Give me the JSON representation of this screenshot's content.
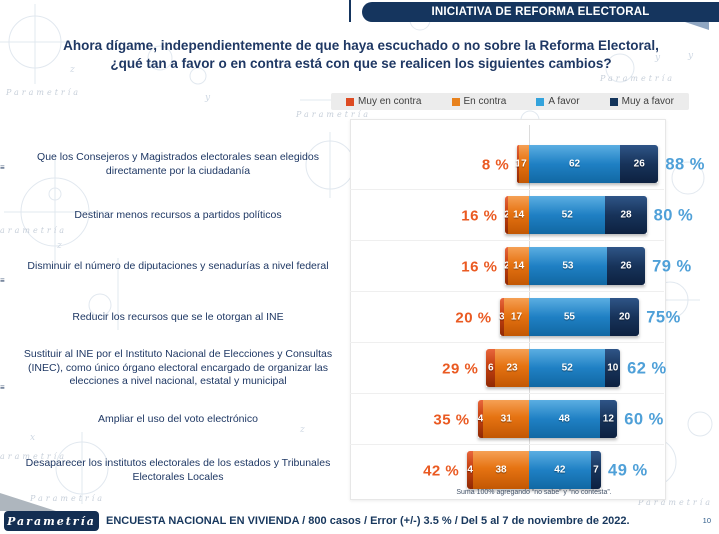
{
  "banner": {
    "title": "INICIATIVA DE REFORMA ELECTORAL"
  },
  "title": {
    "lines": [
      "Ahora dígame, independientemente de que haya escuchado o no sobre la Reforma Electoral,",
      "¿qué tan a favor o en contra está con que se realicen los siguientes cambios?"
    ]
  },
  "legend": {
    "items": [
      {
        "label": "Muy en contra",
        "color": "#dd4b23"
      },
      {
        "label": "En contra",
        "color": "#e8821e"
      },
      {
        "label": "A favor",
        "color": "#33a3dc"
      },
      {
        "label": "Muy a favor",
        "color": "#14355c"
      }
    ]
  },
  "chart_data": {
    "type": "bar",
    "orientation": "horizontal-diverging-stacked",
    "unit": "%",
    "categories": [
      "Que los Consejeros y Magistrados electorales sean elegidos directamente por la ciudadanía",
      "Destinar menos recursos a partidos políticos",
      "Disminuir el número de diputaciones y senadurías a nivel federal",
      "Reducir los recursos que se le otorgan al INE",
      "Sustituir al INE por el Instituto Nacional de Elecciones y Consultas (INEC), como único órgano electoral encargado de organizar las elecciones a nivel nacional, estatal y municipal",
      "Ampliar el uso del voto electrónico",
      "Desaparecer los institutos electorales de los estados y Tribunales Electorales Locales"
    ],
    "series": [
      {
        "name": "Muy en contra",
        "color": "#c4400f",
        "values": [
          1,
          2,
          2,
          3,
          6,
          4,
          4
        ]
      },
      {
        "name": "En contra",
        "color": "#e67312",
        "values": [
          7,
          14,
          14,
          17,
          23,
          31,
          38
        ]
      },
      {
        "name": "A favor",
        "color": "#1f80c4",
        "values": [
          62,
          52,
          53,
          55,
          52,
          48,
          42
        ]
      },
      {
        "name": "Muy a favor",
        "color": "#17335a",
        "values": [
          26,
          28,
          26,
          20,
          10,
          12,
          7
        ]
      }
    ],
    "totals_contra": [
      "8 %",
      "16 %",
      "16 %",
      "20 %",
      "29 %",
      "35 %",
      "42 %"
    ],
    "totals_favor": [
      "88 %",
      "80 %",
      "79 %",
      "75%",
      "62 %",
      "60 %",
      "49 %"
    ]
  },
  "note": "Suma 100%  agregando “no sabe” y “no contesta”.",
  "footer": {
    "logo": "Parametría",
    "text": "ENCUESTA NACIONAL EN VIVIENDA / 800 casos / Error (+/-) 3.5 % / Del 5 al 7 de noviembre de 2022.",
    "page": "10"
  },
  "watermark": "Parametría"
}
